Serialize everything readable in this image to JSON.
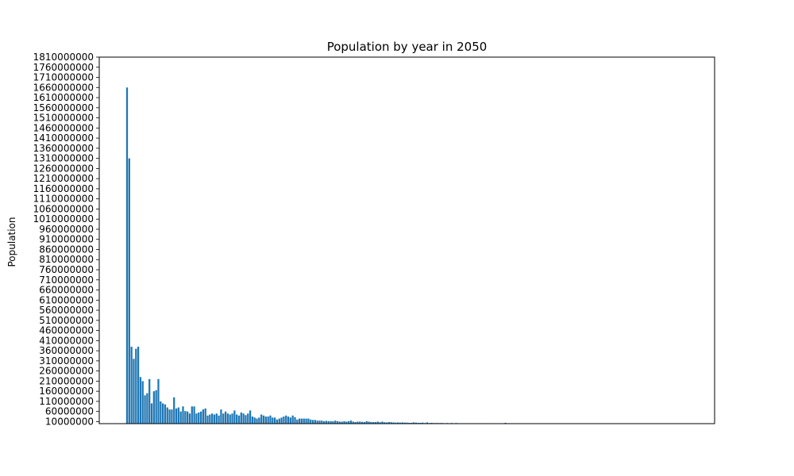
{
  "chart_data": {
    "type": "bar",
    "title": "Population by year in 2050",
    "xlabel": "",
    "ylabel": "Population",
    "ylim": [
      0,
      1810000000
    ],
    "yticks": [
      10000000,
      60000000,
      110000000,
      160000000,
      210000000,
      260000000,
      310000000,
      360000000,
      410000000,
      460000000,
      510000000,
      560000000,
      610000000,
      660000000,
      710000000,
      760000000,
      810000000,
      860000000,
      910000000,
      960000000,
      1010000000,
      1060000000,
      1110000000,
      1160000000,
      1210000000,
      1260000000,
      1310000000,
      1360000000,
      1410000000,
      1460000000,
      1510000000,
      1560000000,
      1610000000,
      1660000000,
      1710000000,
      1760000000,
      1810000000
    ],
    "x_tick_labels_shown": false,
    "grid": false,
    "bar_color": "#1f77b4",
    "values": [
      1660000000,
      1310000000,
      380000000,
      320000000,
      370000000,
      380000000,
      230000000,
      210000000,
      140000000,
      150000000,
      220000000,
      100000000,
      160000000,
      165000000,
      220000000,
      110000000,
      100000000,
      95000000,
      80000000,
      70000000,
      70000000,
      130000000,
      75000000,
      80000000,
      60000000,
      85000000,
      62000000,
      60000000,
      50000000,
      85000000,
      85000000,
      50000000,
      55000000,
      60000000,
      70000000,
      75000000,
      40000000,
      45000000,
      50000000,
      45000000,
      50000000,
      40000000,
      70000000,
      50000000,
      60000000,
      50000000,
      45000000,
      50000000,
      65000000,
      45000000,
      40000000,
      55000000,
      50000000,
      42000000,
      50000000,
      65000000,
      35000000,
      30000000,
      25000000,
      30000000,
      45000000,
      40000000,
      35000000,
      35000000,
      40000000,
      30000000,
      30000000,
      20000000,
      25000000,
      30000000,
      35000000,
      40000000,
      35000000,
      30000000,
      40000000,
      32000000,
      20000000,
      25000000,
      25000000,
      25000000,
      25000000,
      25000000,
      20000000,
      18000000,
      18000000,
      15000000,
      15000000,
      15000000,
      12000000,
      14000000,
      12000000,
      12000000,
      12000000,
      15000000,
      12000000,
      10000000,
      10000000,
      12000000,
      10000000,
      12000000,
      15000000,
      10000000,
      8000000,
      10000000,
      10000000,
      9000000,
      8000000,
      12000000,
      10000000,
      8000000,
      8000000,
      8000000,
      10000000,
      7000000,
      10000000,
      7000000,
      6000000,
      8000000,
      7000000,
      6000000,
      5000000,
      6000000,
      5000000,
      6000000,
      5000000,
      5000000,
      4000000,
      4000000,
      6000000,
      5000000,
      4000000,
      4000000,
      5000000,
      3000000,
      6000000,
      3000000,
      4000000,
      3000000,
      3000000,
      3000000,
      3000000,
      3000000,
      2000000,
      3000000,
      2000000,
      3000000,
      2000000,
      3000000,
      2000000,
      2000000,
      2000000,
      2000000,
      2000000,
      2000000,
      2000000,
      2000000,
      2000000,
      2000000,
      2000000,
      2000000,
      2000000,
      2000000,
      2000000,
      2000000,
      1000000,
      1000000,
      1000000,
      1000000,
      1000000,
      4000000,
      1000000,
      1000000,
      800000,
      800000,
      800000,
      800000,
      700000,
      700000,
      700000,
      600000,
      600000,
      600000,
      500000,
      500000,
      500000,
      500000,
      400000,
      400000,
      400000,
      400000,
      300000,
      300000,
      300000,
      300000,
      300000,
      200000,
      200000,
      200000,
      200000,
      200000,
      150000,
      150000,
      150000,
      150000,
      120000,
      120000,
      100000,
      100000,
      100000,
      100000,
      90000,
      80000,
      80000,
      70000,
      60000,
      60000,
      50000,
      50000,
      40000,
      40000,
      30000,
      30000,
      20000,
      20000,
      10000,
      10000,
      10000
    ]
  }
}
